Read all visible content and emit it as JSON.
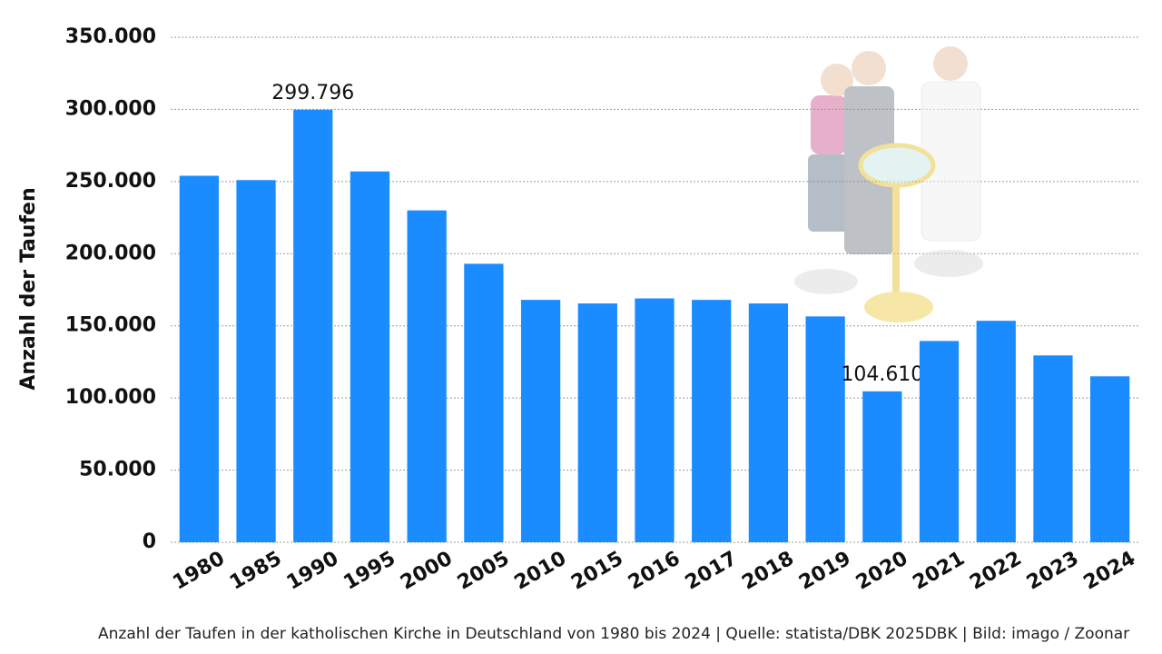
{
  "chart_data": {
    "type": "bar",
    "y_label": "Anzahl der Taufen",
    "caption": "Anzahl der Taufen in der katholischen Kirche in Deutschland von 1980 bis 2024 | Quelle: statista/DBK 2025DBK | Bild: imago / Zoonar",
    "categories": [
      "1980",
      "1985",
      "1990",
      "1995",
      "2000",
      "2005",
      "2010",
      "2015",
      "2016",
      "2017",
      "2018",
      "2019",
      "2020",
      "2021",
      "2022",
      "2023",
      "2024"
    ],
    "values": [
      254000,
      251000,
      299796,
      257000,
      230000,
      193000,
      168000,
      165500,
      169000,
      168000,
      165500,
      156500,
      104610,
      139500,
      153500,
      129500,
      115000
    ],
    "value_labels": [
      null,
      null,
      "299.796",
      null,
      null,
      null,
      null,
      null,
      null,
      null,
      null,
      null,
      "104.610",
      null,
      null,
      null,
      null
    ],
    "color": "#1a8cff",
    "ylim": [
      0,
      350000
    ],
    "yticks": [
      0,
      {
        "value": 50000,
        "label": "50.000"
      },
      {
        "value": 100000,
        "label": "100.000"
      },
      {
        "value": 150000,
        "label": "150.000"
      },
      {
        "value": 200000,
        "label": "200.000"
      },
      {
        "value": 250000,
        "label": "250.000"
      },
      {
        "value": 300000,
        "label": "300.000"
      },
      {
        "value": 350000,
        "label": "350.000"
      }
    ],
    "grid": true
  }
}
